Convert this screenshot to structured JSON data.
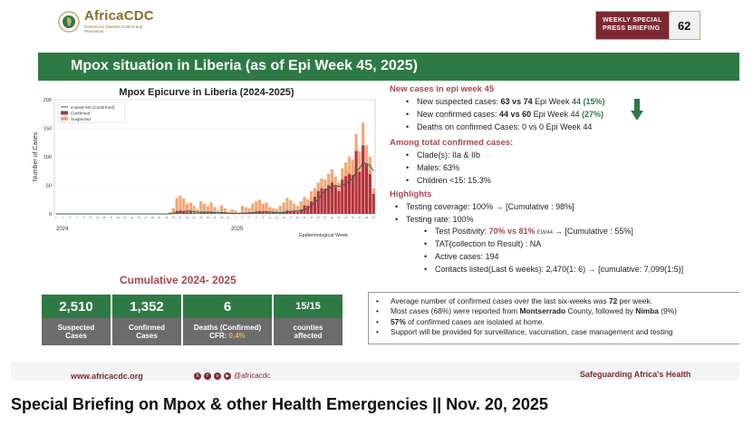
{
  "header": {
    "org_name": "AfricaCDC",
    "org_sub": "Centres for Disease Control and Prevention",
    "briefing_label_1": "WEEKLY SPECIAL",
    "briefing_label_2": "PRESS BRIEFING",
    "briefing_number": "62"
  },
  "slide_title": "Mpox situation in Liberia (as of Epi Week 45, 2025)",
  "chart_data": {
    "type": "bar",
    "title": "Mpox Epicurve in Liberia (2024-2025)",
    "xlabel": "Epidemiological Week",
    "ylabel": "Number of Cases",
    "ylim": [
      0,
      200
    ],
    "yticks": [
      "0",
      "50",
      "100",
      "150",
      "200"
    ],
    "year_labels": [
      "2024",
      "2025"
    ],
    "legend": [
      "4-week MA (Confirmed)",
      "Confirmed",
      "Suspected"
    ],
    "colors": {
      "confirmed": "#b5323c",
      "suspected": "#f0a878",
      "ma": "#3f5f5f"
    },
    "series": [
      {
        "name": "Suspected",
        "values": [
          0,
          0,
          0,
          0,
          0,
          0,
          0,
          0,
          0,
          0,
          0,
          0,
          0,
          0,
          0,
          0,
          0,
          0,
          0,
          0,
          0,
          0,
          0,
          0,
          0,
          0,
          0,
          0,
          0,
          0,
          0,
          0,
          0,
          3,
          10,
          28,
          32,
          27,
          18,
          20,
          14,
          8,
          22,
          18,
          14,
          20,
          12,
          6,
          15,
          10,
          4,
          8,
          6,
          2,
          14,
          12,
          10,
          18,
          22,
          25,
          18,
          20,
          12,
          10,
          8,
          14,
          20,
          28,
          24,
          18,
          14,
          22,
          30,
          26,
          40,
          45,
          55,
          62,
          60,
          70,
          78,
          65,
          55,
          80,
          90,
          100,
          95,
          140,
          110,
          160,
          120,
          100,
          45
        ]
      },
      {
        "name": "Confirmed",
        "values": [
          0,
          0,
          0,
          0,
          0,
          0,
          0,
          0,
          0,
          0,
          0,
          0,
          0,
          0,
          0,
          0,
          0,
          0,
          0,
          0,
          0,
          0,
          0,
          0,
          0,
          0,
          0,
          0,
          0,
          0,
          0,
          0,
          0,
          0,
          2,
          5,
          6,
          5,
          3,
          4,
          2,
          1,
          4,
          3,
          2,
          3,
          1,
          0,
          2,
          1,
          0,
          1,
          0,
          0,
          2,
          2,
          2,
          3,
          4,
          5,
          3,
          3,
          2,
          2,
          1,
          2,
          4,
          6,
          5,
          4,
          3,
          8,
          15,
          14,
          22,
          30,
          40,
          45,
          44,
          50,
          55,
          48,
          40,
          60,
          66,
          70,
          68,
          110,
          74,
          120,
          88,
          70,
          35
        ]
      },
      {
        "name": "4-week MA (Confirmed)",
        "values": [
          0,
          0,
          0,
          0,
          0,
          0,
          0,
          0,
          0,
          0,
          0,
          0,
          0,
          0,
          0,
          0,
          0,
          0,
          0,
          0,
          0,
          0,
          0,
          0,
          0,
          0,
          0,
          0,
          0,
          0,
          0,
          0,
          0,
          0,
          1,
          2,
          3,
          4,
          5,
          5,
          4,
          3,
          3,
          3,
          3,
          3,
          2,
          2,
          2,
          2,
          1,
          1,
          1,
          1,
          1,
          1,
          2,
          2,
          3,
          3,
          4,
          4,
          3,
          3,
          2,
          2,
          2,
          3,
          4,
          5,
          5,
          5,
          7,
          10,
          14,
          20,
          26,
          34,
          40,
          45,
          48,
          50,
          48,
          50,
          52,
          58,
          62,
          75,
          80,
          90,
          88,
          85,
          75
        ]
      }
    ]
  },
  "new_cases": {
    "title": "New cases in epi week 45",
    "suspected_prefix": "New suspected cases: ",
    "suspected_value": "63 vs 74",
    "suspected_suffix": " Epi Week 44 ",
    "suspected_pct": "(15%)",
    "confirmed_prefix": "New confirmed cases: ",
    "confirmed_value": "44 vs 60",
    "confirmed_suffix": " Epi Week 44 ",
    "confirmed_pct": "(27%)",
    "deaths": "Deaths on confirmed Cases: 0 vs 0 Epi Week 44"
  },
  "total_confirmed": {
    "title": "Among total confirmed cases:",
    "items": [
      "Clade(s): IIa & IIb",
      "Males: 63%",
      "Children <15: 15.3%"
    ]
  },
  "highlights": {
    "title": "Highlights",
    "testing_coverage": "Testing coverage: 100% → [Cumulative : 98%]",
    "testing_rate": "Testing rate: 100%",
    "positivity_prefix": "Test Positivity: ",
    "positivity_value": "70% vs 81%",
    "positivity_ew": " EW44 ",
    "positivity_suffix": "→  [Cumulative : 55%]",
    "tat": "TAT(collection to Result) : NA",
    "active": "Active cases: 194",
    "contacts": "Contacts listed(Last 6 weeks): 2,470(1: 6)  → [cumulative: 7,099(1:5)]"
  },
  "cumulative": {
    "title": "Cumulative 2024- 2025",
    "suspected_num": "2,510",
    "suspected_lbl1": "Suspected",
    "suspected_lbl2": "Cases",
    "confirmed_num": "1,352",
    "confirmed_lbl1": "Confirmed",
    "confirmed_lbl2": "Cases",
    "deaths_num": "6",
    "deaths_lbl": "Deaths (Confirmed)",
    "cfr_prefix": "CFR: ",
    "cfr_value": "0.4%",
    "counties_num": "15/15",
    "counties_lbl1": "counties",
    "counties_lbl2": "affected"
  },
  "summary": {
    "line1_prefix": "Average number of confirmed cases over the last six-weeks was ",
    "line1_value": "72",
    "line1_suffix": " per week.",
    "line2_prefix": "Most cases (68%) were reported from ",
    "line2_county1": "Montserrado",
    "line2_mid": " County, followed by ",
    "line2_county2": "Nimba",
    "line2_suffix": " (9%)",
    "line3_value": "57%",
    "line3_suffix": " of confirmed cases are isolated at home.",
    "line4": "Support will be provided for surveillance, vaccination, case management and testing"
  },
  "footer": {
    "url": "www.africacdc.org",
    "social": "@africacdc",
    "tagline": "Safeguarding Africa's Health"
  },
  "video_title": "Special Briefing on Mpox & other Health Emergencies || Nov. 20, 2025"
}
